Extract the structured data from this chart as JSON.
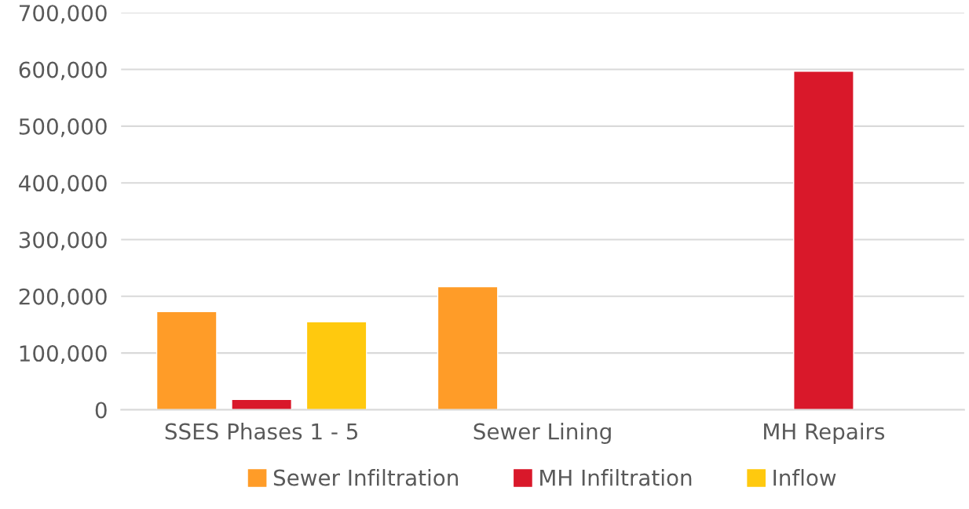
{
  "chart_data": {
    "type": "bar",
    "categories": [
      "SSES Phases 1 - 5",
      "Sewer Lining",
      "MH Repairs"
    ],
    "series": [
      {
        "name": "Sewer Infiltration",
        "color": "#ff9c28",
        "values": [
          173000,
          217000,
          null
        ]
      },
      {
        "name": "MH Infiltration",
        "color": "#d9182a",
        "values": [
          18000,
          null,
          597000
        ]
      },
      {
        "name": "Inflow",
        "color": "#ffc90e",
        "values": [
          155000,
          null,
          null
        ]
      }
    ],
    "ylim": [
      0,
      700000
    ],
    "yticks": [
      {
        "value": 0,
        "label": "0"
      },
      {
        "value": 100000,
        "label": "100,000"
      },
      {
        "value": 200000,
        "label": "200,000"
      },
      {
        "value": 300000,
        "label": "300,000"
      },
      {
        "value": 400000,
        "label": "400,000"
      },
      {
        "value": 500000,
        "label": "500,000"
      },
      {
        "value": 600000,
        "label": "600,000"
      },
      {
        "value": 700000,
        "label": "700,000"
      }
    ],
    "grid": "y",
    "legend": "bottom"
  }
}
